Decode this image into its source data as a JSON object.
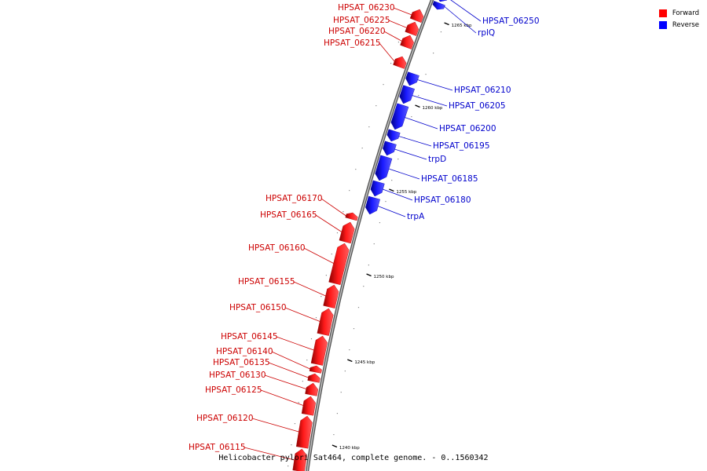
{
  "caption": "Helicobacter pylori Sat464, complete genome. - 0..1560342",
  "colors": {
    "forward": "#ff0000",
    "reverse": "#0000ff",
    "label_forward": "#cc0000",
    "label_reverse": "#0000cc",
    "backbone": "#888888"
  },
  "legend": [
    {
      "label": "Forward",
      "color": "#ff0000"
    },
    {
      "label": "Reverse",
      "color": "#0000ff"
    }
  ],
  "ticks": [
    {
      "kbp": 1240,
      "label": "1240 kbp"
    },
    {
      "kbp": 1245,
      "label": "1245 kbp"
    },
    {
      "kbp": 1250,
      "label": "1250 kbp"
    },
    {
      "kbp": 1255,
      "label": "1255 kbp"
    },
    {
      "kbp": 1260,
      "label": "1260 kbp"
    },
    {
      "kbp": 1265,
      "label": "1265 kbp"
    }
  ],
  "genes": [
    {
      "name": "HPSAT_06115",
      "strand": "forward"
    },
    {
      "name": "HPSAT_06120",
      "strand": "forward"
    },
    {
      "name": "HPSAT_06125",
      "strand": "forward"
    },
    {
      "name": "HPSAT_06130",
      "strand": "forward"
    },
    {
      "name": "HPSAT_06135",
      "strand": "forward"
    },
    {
      "name": "HPSAT_06140",
      "strand": "forward"
    },
    {
      "name": "HPSAT_06145",
      "strand": "forward"
    },
    {
      "name": "HPSAT_06150",
      "strand": "forward"
    },
    {
      "name": "HPSAT_06155",
      "strand": "forward"
    },
    {
      "name": "HPSAT_06160",
      "strand": "forward"
    },
    {
      "name": "HPSAT_06165",
      "strand": "forward"
    },
    {
      "name": "HPSAT_06170",
      "strand": "forward"
    },
    {
      "name": "trpA",
      "strand": "reverse"
    },
    {
      "name": "HPSAT_06180",
      "strand": "reverse"
    },
    {
      "name": "HPSAT_06185",
      "strand": "reverse"
    },
    {
      "name": "trpD",
      "strand": "reverse"
    },
    {
      "name": "HPSAT_06195",
      "strand": "reverse"
    },
    {
      "name": "HPSAT_06200",
      "strand": "reverse"
    },
    {
      "name": "HPSAT_06205",
      "strand": "reverse"
    },
    {
      "name": "HPSAT_06210",
      "strand": "reverse"
    },
    {
      "name": "HPSAT_06215",
      "strand": "forward"
    },
    {
      "name": "HPSAT_06220",
      "strand": "forward"
    },
    {
      "name": "HPSAT_06225",
      "strand": "forward"
    },
    {
      "name": "HPSAT_06230",
      "strand": "forward"
    },
    {
      "name": "rplQ",
      "strand": "reverse"
    },
    {
      "name": "HPSAT_06250",
      "strand": "reverse"
    }
  ]
}
